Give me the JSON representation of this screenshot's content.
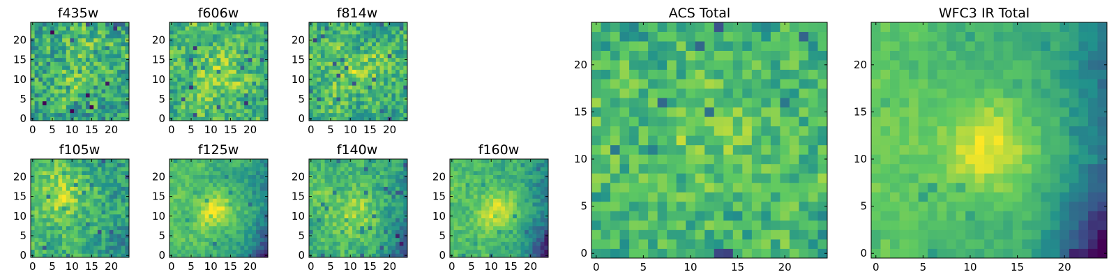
{
  "colormap": {
    "name": "viridis",
    "colors": [
      "#440154",
      "#3b528b",
      "#21918c",
      "#5ec962",
      "#fde725"
    ]
  },
  "chart_data": [
    {
      "type": "heatmap",
      "title": "f435w",
      "xticks": [
        "0",
        "5",
        "10",
        "15",
        "20"
      ],
      "yticks": [
        "0",
        "5",
        "10",
        "15",
        "20"
      ],
      "xlim": [
        -0.5,
        24.5
      ],
      "ylim": [
        -0.5,
        24.5
      ],
      "grid_size": 25,
      "profile": {
        "level": 0.58,
        "spread": 0.36,
        "peak": 0.12,
        "peak_center": [
          12,
          12
        ],
        "peak_width": 6,
        "edge_gradient": 0.0,
        "corner_dim": 0.0,
        "seed": 11
      }
    },
    {
      "type": "heatmap",
      "title": "f606w",
      "xticks": [
        "0",
        "5",
        "10",
        "15",
        "20"
      ],
      "yticks": [
        "0",
        "5",
        "10",
        "15",
        "20"
      ],
      "xlim": [
        -0.5,
        24.5
      ],
      "ylim": [
        -0.5,
        24.5
      ],
      "grid_size": 25,
      "profile": {
        "level": 0.64,
        "spread": 0.3,
        "peak": 0.18,
        "peak_center": [
          12,
          11
        ],
        "peak_width": 5,
        "edge_gradient": 0.05,
        "corner_dim": 0.0,
        "seed": 23
      }
    },
    {
      "type": "heatmap",
      "title": "f814w",
      "xticks": [
        "0",
        "5",
        "10",
        "15",
        "20"
      ],
      "yticks": [
        "0",
        "5",
        "10",
        "15",
        "20"
      ],
      "xlim": [
        -0.5,
        24.5
      ],
      "ylim": [
        -0.5,
        24.5
      ],
      "grid_size": 25,
      "profile": {
        "level": 0.63,
        "spread": 0.3,
        "peak": 0.16,
        "peak_center": [
          12,
          12
        ],
        "peak_width": 5,
        "edge_gradient": 0.03,
        "corner_dim": 0.0,
        "seed": 37
      }
    },
    {
      "type": "heatmap",
      "title": "f105w",
      "xticks": [
        "0",
        "5",
        "10",
        "15",
        "20"
      ],
      "yticks": [
        "0",
        "5",
        "10",
        "15",
        "20"
      ],
      "xlim": [
        -0.5,
        24.5
      ],
      "ylim": [
        -0.5,
        24.5
      ],
      "grid_size": 25,
      "profile": {
        "level": 0.6,
        "spread": 0.24,
        "peak": 0.18,
        "peak_center": [
          8,
          14
        ],
        "peak_width": 5,
        "edge_gradient": 0.12,
        "corner_dim": 0.12,
        "seed": 41
      }
    },
    {
      "type": "heatmap",
      "title": "f125w",
      "xticks": [
        "0",
        "5",
        "10",
        "15",
        "20"
      ],
      "yticks": [
        "0",
        "5",
        "10",
        "15",
        "20"
      ],
      "xlim": [
        -0.5,
        24.5
      ],
      "ylim": [
        -0.5,
        24.5
      ],
      "grid_size": 25,
      "profile": {
        "level": 0.58,
        "spread": 0.16,
        "peak": 0.3,
        "peak_center": [
          12,
          11
        ],
        "peak_width": 3.5,
        "edge_gradient": 0.22,
        "corner_dim": 0.35,
        "seed": 53
      }
    },
    {
      "type": "heatmap",
      "title": "f140w",
      "xticks": [
        "0",
        "5",
        "10",
        "15",
        "20"
      ],
      "yticks": [
        "0",
        "5",
        "10",
        "15",
        "20"
      ],
      "xlim": [
        -0.5,
        24.5
      ],
      "ylim": [
        -0.5,
        24.5
      ],
      "grid_size": 25,
      "profile": {
        "level": 0.58,
        "spread": 0.2,
        "peak": 0.22,
        "peak_center": [
          12,
          11
        ],
        "peak_width": 4,
        "edge_gradient": 0.18,
        "corner_dim": 0.25,
        "seed": 67
      }
    },
    {
      "type": "heatmap",
      "title": "f160w",
      "xticks": [
        "0",
        "5",
        "10",
        "15",
        "20"
      ],
      "yticks": [
        "0",
        "5",
        "10",
        "15",
        "20"
      ],
      "xlim": [
        -0.5,
        24.5
      ],
      "ylim": [
        -0.5,
        24.5
      ],
      "grid_size": 25,
      "profile": {
        "level": 0.57,
        "spread": 0.16,
        "peak": 0.32,
        "peak_center": [
          12,
          11
        ],
        "peak_width": 3.5,
        "edge_gradient": 0.25,
        "corner_dim": 0.4,
        "seed": 79
      }
    },
    {
      "type": "heatmap",
      "title": "ACS Total",
      "xticks": [
        "0",
        "5",
        "10",
        "15",
        "20"
      ],
      "yticks": [
        "0",
        "5",
        "10",
        "15",
        "20"
      ],
      "xlim": [
        -0.5,
        24.5
      ],
      "ylim": [
        -0.5,
        24.5
      ],
      "grid_size": 25,
      "profile": {
        "level": 0.62,
        "spread": 0.26,
        "peak": 0.16,
        "peak_center": [
          12,
          11
        ],
        "peak_width": 5,
        "edge_gradient": 0.04,
        "corner_dim": 0.0,
        "seed": 97
      }
    },
    {
      "type": "heatmap",
      "title": "WFC3 IR Total",
      "xticks": [
        "0",
        "5",
        "10",
        "15",
        "20"
      ],
      "yticks": [
        "0",
        "5",
        "10",
        "15",
        "20"
      ],
      "xlim": [
        -0.5,
        24.5
      ],
      "ylim": [
        -0.5,
        24.5
      ],
      "grid_size": 25,
      "profile": {
        "level": 0.58,
        "spread": 0.1,
        "peak": 0.32,
        "peak_center": [
          12,
          11
        ],
        "peak_width": 3.5,
        "edge_gradient": 0.28,
        "corner_dim": 0.45,
        "seed": 101
      }
    }
  ]
}
